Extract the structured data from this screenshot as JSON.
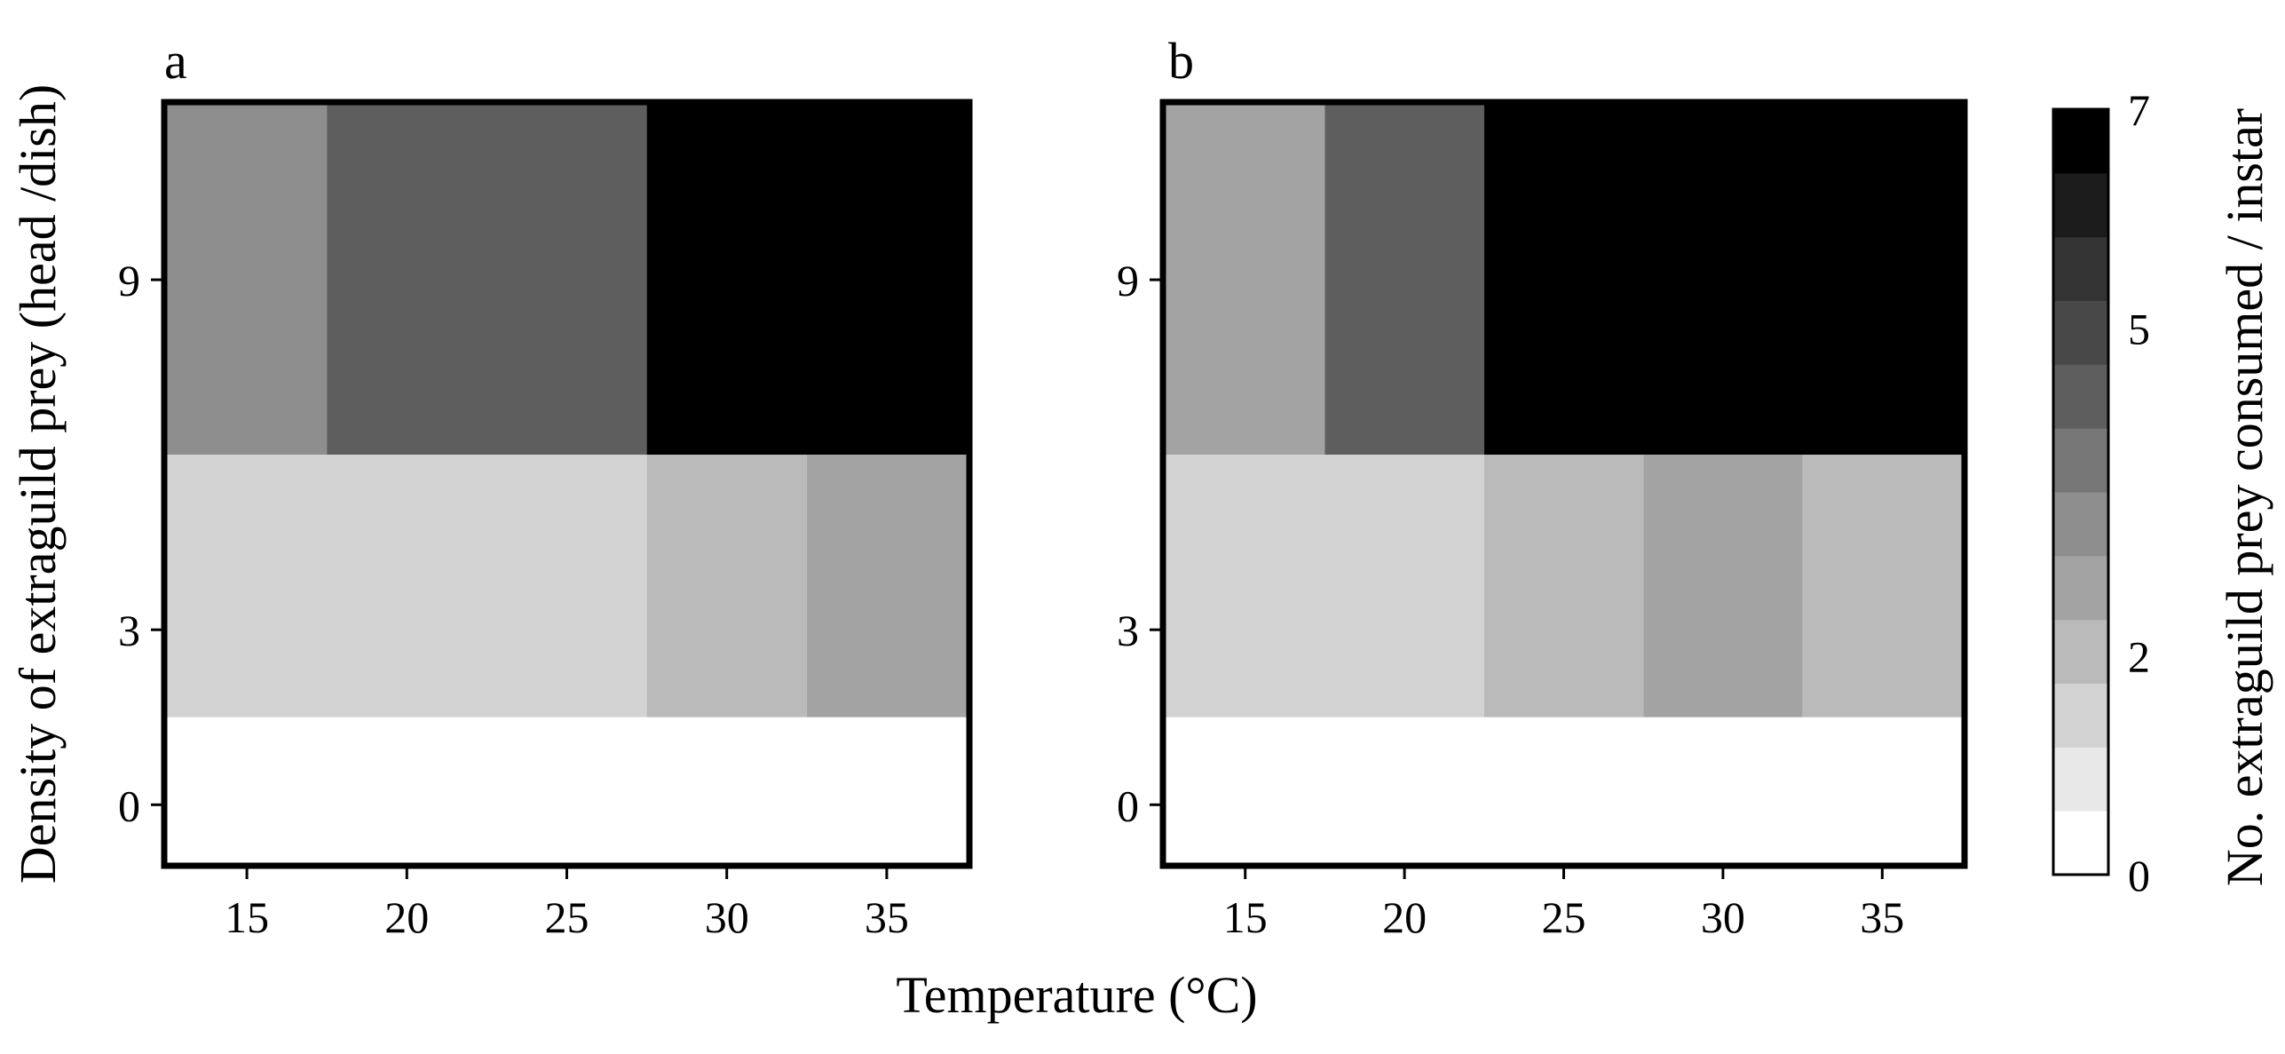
{
  "figure": {
    "shared_xlabel": "Temperature (°C)",
    "shared_ylabel": "Density of extraguild prey (head /dish)"
  },
  "colorbar": {
    "label": "No. extraguild prey consumed / instar",
    "range": [
      0,
      7
    ],
    "levels": 12,
    "tick_values": [
      0,
      2,
      5,
      7
    ],
    "tick_labels": [
      "0",
      "2",
      "5",
      "7"
    ],
    "colors": [
      "#ffffff",
      "#e8e8e8",
      "#d3d3d3",
      "#bababa",
      "#a3a3a3",
      "#8e8e8e",
      "#777777",
      "#5e5e5e",
      "#484848",
      "#333333",
      "#1c1c1c",
      "#000000"
    ]
  },
  "chart_data": [
    {
      "type": "heatmap",
      "panel": "a",
      "xlabel": "Temperature (°C)",
      "ylabel": "Density of extraguild prey (head /dish)",
      "x": [
        15,
        20,
        25,
        30,
        35
      ],
      "x_tick_labels": [
        "15",
        "20",
        "25",
        "30",
        "35"
      ],
      "y_tick_labels": [
        "0",
        "3",
        "9"
      ],
      "ylim": [
        -1,
        12
      ],
      "y_rows": [
        {
          "y": 0,
          "from": -1,
          "to": 1.5
        },
        {
          "y": 3,
          "from": 1.5,
          "to": 6
        },
        {
          "y": 9,
          "from": 6,
          "to": 12
        }
      ],
      "cells": [
        {
          "y": 9,
          "from": 12.5,
          "to": 17.5,
          "value": 3.2
        },
        {
          "y": 9,
          "from": 17.5,
          "to": 27.5,
          "value": 4.6
        },
        {
          "y": 9,
          "from": 27.5,
          "to": 37.5,
          "value": 7.0
        },
        {
          "y": 3,
          "from": 12.5,
          "to": 27.5,
          "value": 1.4
        },
        {
          "y": 3,
          "from": 27.5,
          "to": 32.5,
          "value": 2.0
        },
        {
          "y": 3,
          "from": 32.5,
          "to": 37.5,
          "value": 2.6
        },
        {
          "y": 0,
          "from": 12.5,
          "to": 37.5,
          "value": 0.0
        }
      ]
    },
    {
      "type": "heatmap",
      "panel": "b",
      "xlabel": "Temperature (°C)",
      "ylabel": "Density of extraguild prey (head /dish)",
      "x": [
        15,
        20,
        25,
        30,
        35
      ],
      "x_tick_labels": [
        "15",
        "20",
        "25",
        "30",
        "35"
      ],
      "y_tick_labels": [
        "0",
        "3",
        "9"
      ],
      "ylim": [
        -1,
        12
      ],
      "y_rows": [
        {
          "y": 0,
          "from": -1,
          "to": 1.5
        },
        {
          "y": 3,
          "from": 1.5,
          "to": 6
        },
        {
          "y": 9,
          "from": 6,
          "to": 12
        }
      ],
      "cells": [
        {
          "y": 9,
          "from": 12.5,
          "to": 17.5,
          "value": 2.6
        },
        {
          "y": 9,
          "from": 17.5,
          "to": 22.5,
          "value": 4.6
        },
        {
          "y": 9,
          "from": 22.5,
          "to": 37.5,
          "value": 7.0
        },
        {
          "y": 3,
          "from": 12.5,
          "to": 22.5,
          "value": 1.4
        },
        {
          "y": 3,
          "from": 22.5,
          "to": 27.5,
          "value": 2.0
        },
        {
          "y": 3,
          "from": 27.5,
          "to": 32.5,
          "value": 2.6
        },
        {
          "y": 3,
          "from": 32.5,
          "to": 37.5,
          "value": 2.0
        },
        {
          "y": 0,
          "from": 12.5,
          "to": 37.5,
          "value": 0.0
        }
      ]
    }
  ]
}
